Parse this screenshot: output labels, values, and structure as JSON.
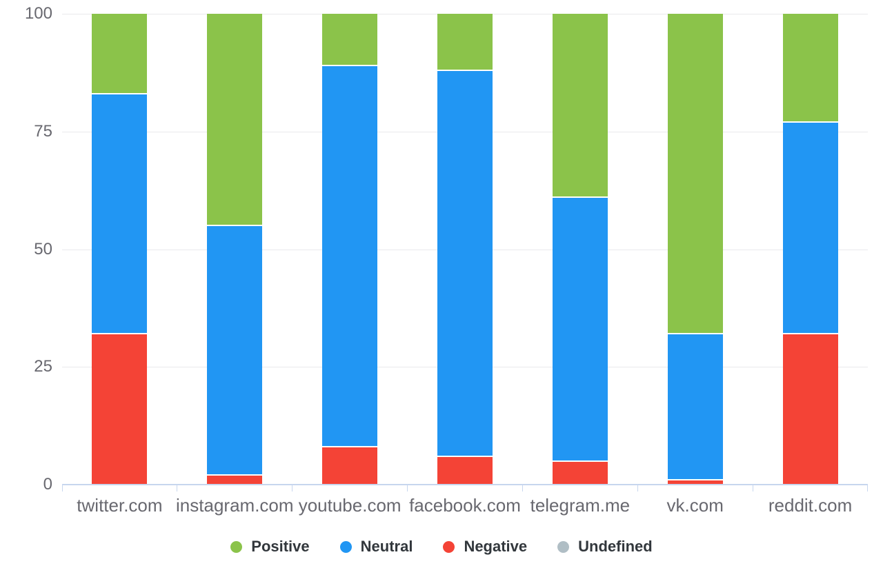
{
  "chart_data": {
    "type": "bar",
    "stacked": true,
    "units": "percent",
    "title": "",
    "xlabel": "",
    "ylabel": "",
    "categories": [
      "twitter.com",
      "instagram.com",
      "youtube.com",
      "facebook.com",
      "telegram.me",
      "vk.com",
      "reddit.com"
    ],
    "series": [
      {
        "name": "Positive",
        "color": "#8bc34a",
        "values": [
          17,
          45,
          11,
          12,
          39,
          68,
          23
        ]
      },
      {
        "name": "Neutral",
        "color": "#2196f3",
        "values": [
          51,
          53,
          81,
          82,
          56,
          31,
          45
        ]
      },
      {
        "name": "Negative",
        "color": "#f44336",
        "values": [
          32,
          2,
          8,
          6,
          5,
          1,
          32
        ]
      },
      {
        "name": "Undefined",
        "color": "#b0bec5",
        "values": [
          0,
          0,
          0,
          0,
          0,
          0,
          0
        ]
      }
    ],
    "stack_order_bottom_to_top": [
      "Negative",
      "Neutral",
      "Positive",
      "Undefined"
    ],
    "ylim": [
      0,
      100
    ],
    "yticks": [
      0,
      25,
      50,
      75,
      100
    ],
    "grid": true,
    "legend_position": "bottom"
  }
}
